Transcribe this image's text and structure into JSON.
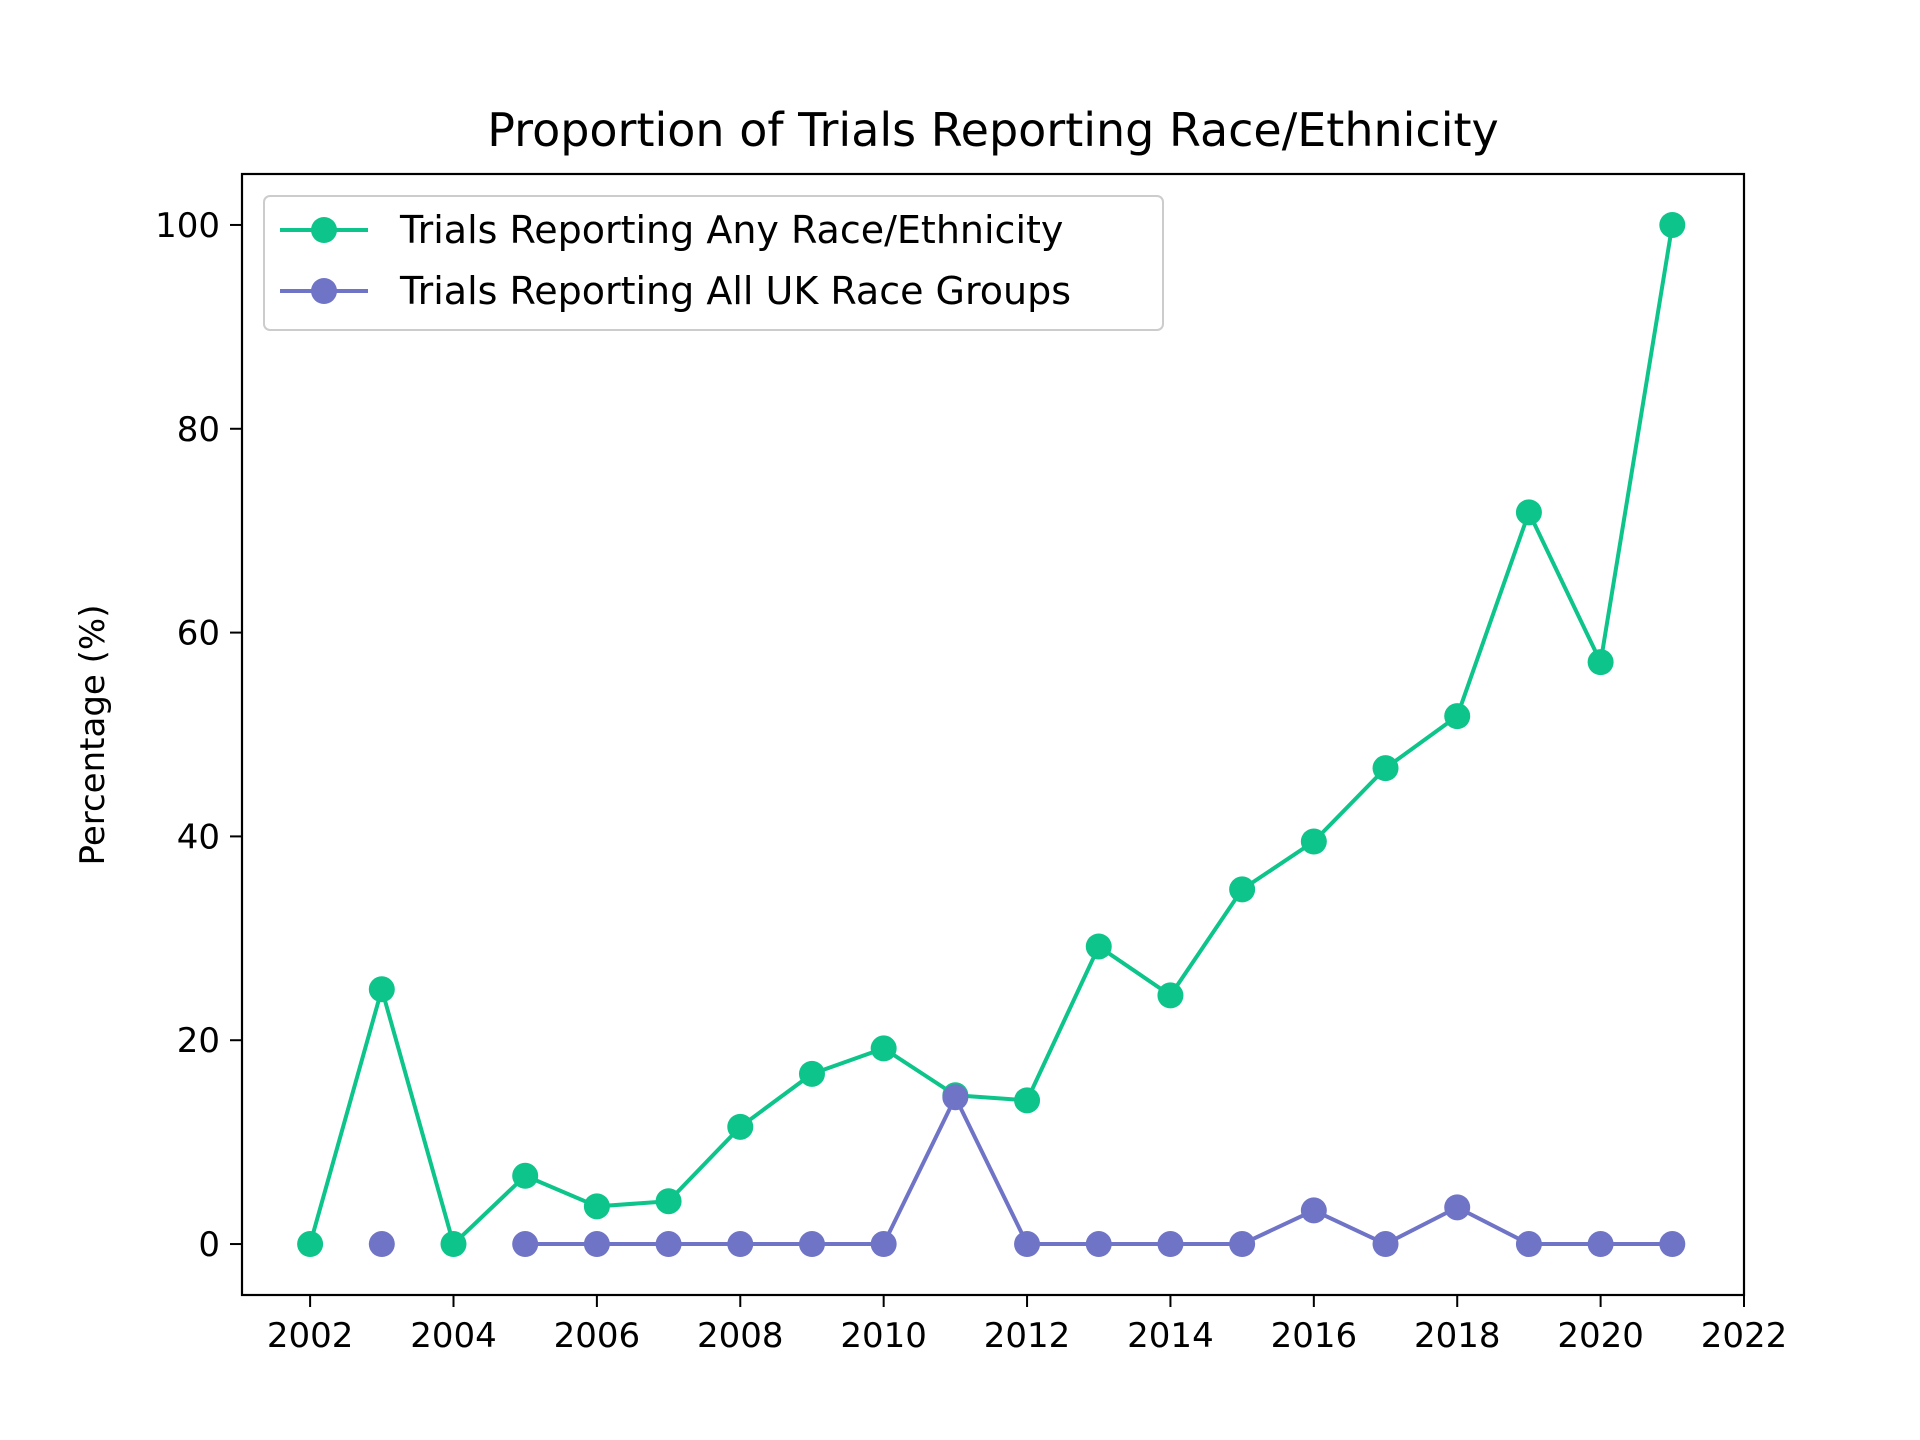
{
  "chart_data": {
    "type": "line",
    "title": "Proportion of Trials Reporting Race/Ethnicity",
    "xlabel": "",
    "ylabel": "Percentage (%)",
    "xlim": [
      2001.05,
      2022
    ],
    "ylim": [
      -5,
      105
    ],
    "xticks": [
      2002,
      2004,
      2006,
      2008,
      2010,
      2012,
      2014,
      2016,
      2018,
      2020,
      2022
    ],
    "yticks": [
      0,
      20,
      40,
      60,
      80,
      100
    ],
    "legend_position": "upper-left",
    "grid": false,
    "series": [
      {
        "name": "Trials Reporting Any Race/Ethnicity",
        "color": "#0dc48a",
        "segments": [
          [
            [
              2002,
              0
            ],
            [
              2003,
              25
            ],
            [
              2004,
              0
            ],
            [
              2005,
              6.7
            ],
            [
              2006,
              3.7
            ],
            [
              2007,
              4.2
            ],
            [
              2008,
              11.5
            ],
            [
              2009,
              16.7
            ],
            [
              2010,
              19.2
            ],
            [
              2011,
              14.6
            ],
            [
              2012,
              14.1
            ],
            [
              2013,
              29.2
            ],
            [
              2014,
              24.4
            ],
            [
              2015,
              34.8
            ],
            [
              2016,
              39.5
            ],
            [
              2017,
              46.7
            ],
            [
              2018,
              51.8
            ],
            [
              2019,
              71.8
            ],
            [
              2020,
              57.1
            ],
            [
              2021,
              100
            ]
          ]
        ]
      },
      {
        "name": "Trials Reporting All UK Race Groups",
        "color": "#6f74c6",
        "segments": [
          [
            [
              2003,
              0
            ]
          ],
          [
            [
              2005,
              0
            ],
            [
              2006,
              0
            ],
            [
              2007,
              0
            ],
            [
              2008,
              0
            ],
            [
              2009,
              0
            ],
            [
              2010,
              0
            ],
            [
              2011,
              14.4
            ],
            [
              2012,
              0
            ],
            [
              2013,
              0
            ],
            [
              2014,
              0
            ],
            [
              2015,
              0
            ],
            [
              2016,
              3.3
            ],
            [
              2017,
              0
            ],
            [
              2018,
              3.6
            ],
            [
              2019,
              0
            ],
            [
              2020,
              0
            ],
            [
              2021,
              0
            ]
          ]
        ]
      }
    ]
  }
}
